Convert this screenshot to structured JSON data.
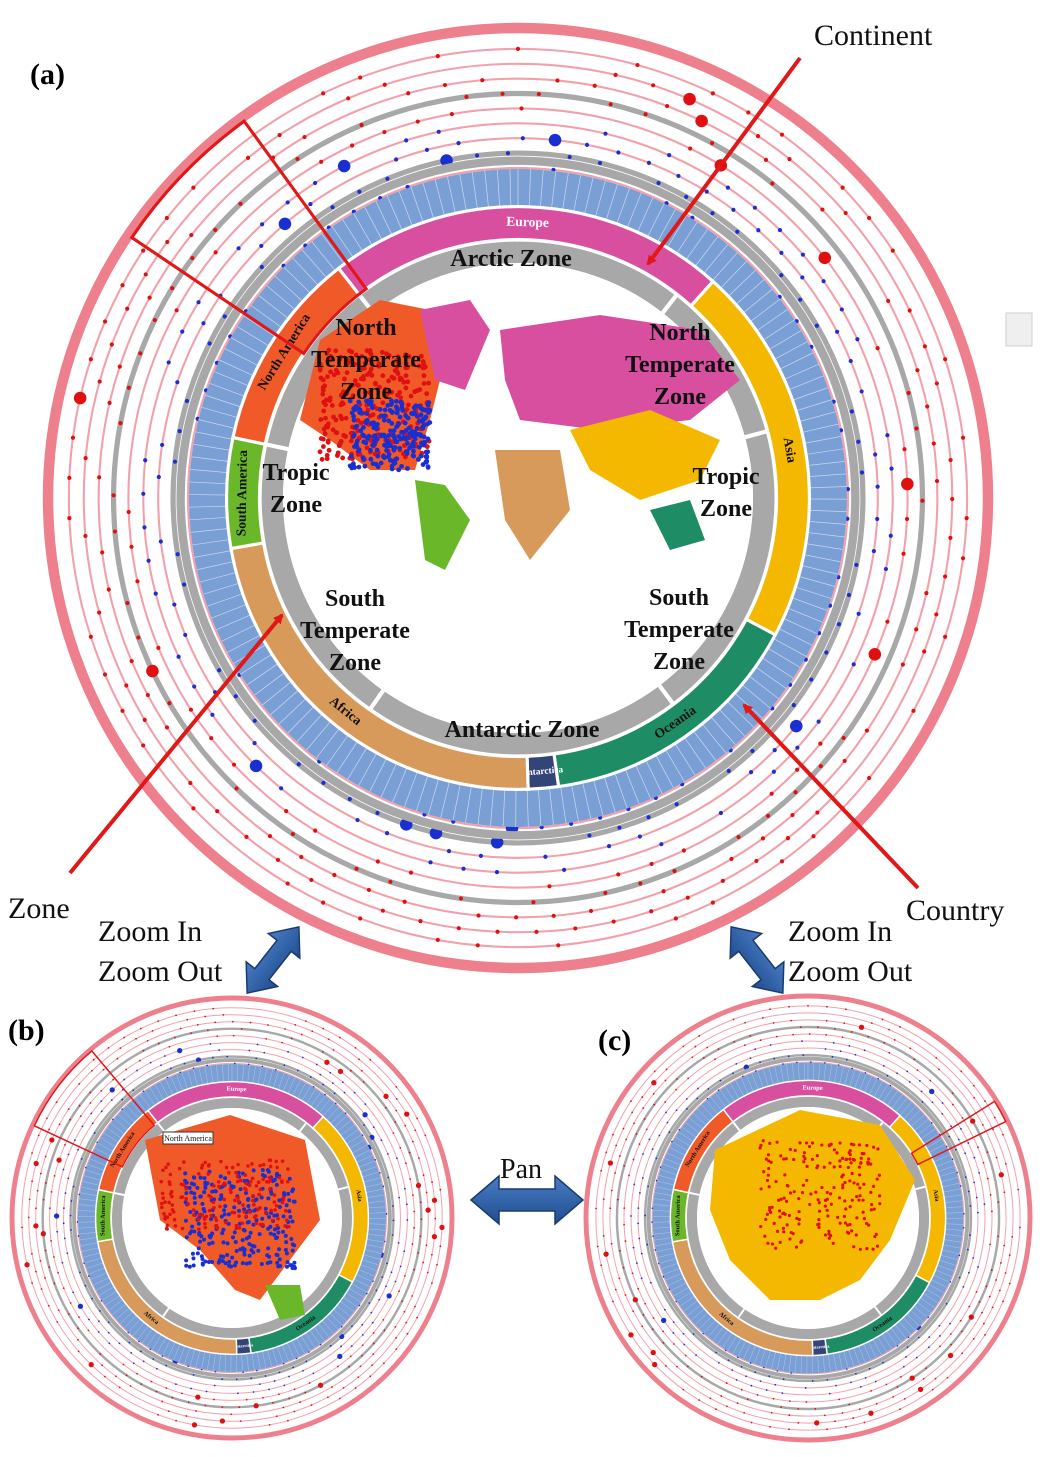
{
  "panels": {
    "a": "(a)",
    "b": "(b)",
    "c": "(c)"
  },
  "callouts": {
    "continent": "Continent",
    "zone": "Zone",
    "country": "Country",
    "zoom_in": "Zoom In",
    "zoom_out": "Zoom Out",
    "pan": "Pan"
  },
  "zones": {
    "arctic": "Arctic Zone",
    "north_temperate_left": [
      "North",
      "Temperate",
      "Zone"
    ],
    "north_temperate_right": [
      "North",
      "Temperate",
      "Zone"
    ],
    "tropic_left": [
      "Tropic",
      "Zone"
    ],
    "tropic_right": [
      "Tropic",
      "Zone"
    ],
    "south_temperate_left": [
      "South",
      "Temperate",
      "Zone"
    ],
    "south_temperate_right": [
      "South",
      "Temperate",
      "Zone"
    ],
    "antarctic": "Antarctic Zone"
  },
  "continents": [
    {
      "name": "Europe",
      "color": "#d94fa0"
    },
    {
      "name": "Asia",
      "color": "#f5b800"
    },
    {
      "name": "Oceania",
      "color": "#1e8c64"
    },
    {
      "name": "Antarctica",
      "color": "#334477"
    },
    {
      "name": "Africa",
      "color": "#d89a5a"
    },
    {
      "name": "South America",
      "color": "#6ab82a"
    },
    {
      "name": "North America",
      "color": "#f05a28"
    }
  ],
  "highlight_label_b": "North America",
  "colors": {
    "outer_ring": "#ee7f8c",
    "ring_line": "#f2a0aa",
    "country_band": "#7a9fd4",
    "gray_ring": "#a8a8a8",
    "arrow_red": "#e01818",
    "dot_red": "#e01010",
    "dot_blue": "#1a2fd0",
    "big_arrow": "#2d5a9e"
  },
  "icons": [
    "zoom-arrow-icon",
    "pan-arrow-icon"
  ]
}
